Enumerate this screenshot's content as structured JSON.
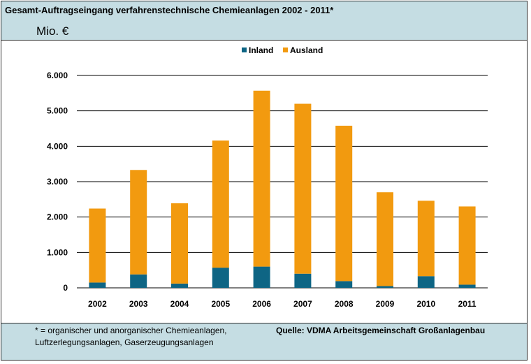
{
  "header": {
    "title": "Gesamt-Auftragseingang verfahrenstechnische Chemieanlagen 2002 - 2011*",
    "unit": "Mio. €"
  },
  "footer": {
    "note_line1": "* = organischer und anorganischer Chemieanlagen,",
    "note_line2": "Luftzerlegungsanlagen, Gaserzeugungsanlagen",
    "source": "Quelle: VDMA Arbeitsgemeinschaft Großanlagenbau"
  },
  "colors": {
    "inland": "#0e6584",
    "ausland": "#f29a0f",
    "header_bg": "#c5dde3",
    "grid": "#000000"
  },
  "chart_data": {
    "type": "bar",
    "stacked": true,
    "categories": [
      "2002",
      "2003",
      "2004",
      "2005",
      "2006",
      "2007",
      "2008",
      "2009",
      "2010",
      "2011"
    ],
    "series": [
      {
        "name": "Inland",
        "values": [
          150,
          380,
          120,
          570,
          600,
          400,
          190,
          50,
          330,
          90
        ]
      },
      {
        "name": "Ausland",
        "values": [
          2090,
          2950,
          2270,
          3590,
          4970,
          4800,
          4390,
          2650,
          2130,
          2210
        ]
      }
    ],
    "totals": [
      2240,
      3330,
      2390,
      4160,
      5570,
      5200,
      4580,
      2700,
      2460,
      2300
    ],
    "ylim": [
      0,
      6000
    ],
    "yticks": [
      0,
      1000,
      2000,
      3000,
      4000,
      5000,
      6000
    ],
    "ytick_labels": [
      "0",
      "1.000",
      "2.000",
      "3.000",
      "4.000",
      "5.000",
      "6.000"
    ],
    "grid": true,
    "legend_position": "top-center"
  }
}
